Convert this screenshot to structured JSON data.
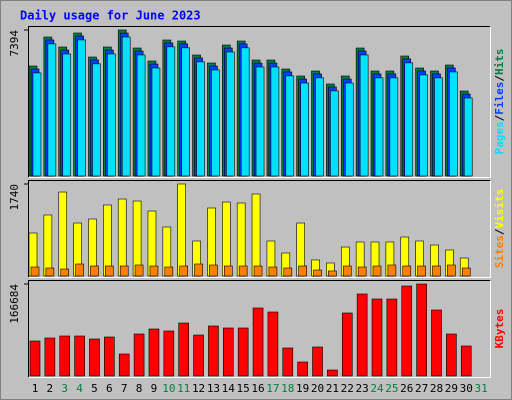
{
  "chart_data": [
    {
      "type": "bar",
      "title": "Daily usage for June 2023",
      "legend_separator": "/",
      "ylim": [
        0,
        7394
      ],
      "yticks": [
        7394
      ],
      "series": [
        {
          "name": "Hits",
          "color": "#008040",
          "values": [
            5570,
            7039,
            6533,
            7242,
            6026,
            6533,
            7394,
            6482,
            5824,
            6887,
            6836,
            6127,
            5722,
            6634,
            6836,
            5874,
            5874,
            5418,
            5064,
            5317,
            4659,
            5064,
            6482,
            5317,
            5317,
            6077,
            5469,
            5317,
            5621,
            4304,
            null
          ]
        },
        {
          "name": "Files",
          "color": "#0040ff",
          "values": [
            5420,
            6890,
            6380,
            7090,
            5880,
            6380,
            7240,
            6330,
            5670,
            6740,
            6690,
            5980,
            5570,
            6480,
            6690,
            5720,
            5720,
            5270,
            4910,
            5170,
            4510,
            4910,
            6330,
            5170,
            5170,
            5930,
            5320,
            5170,
            5470,
            4150,
            null
          ]
        },
        {
          "name": "Pages",
          "color": "#00e0ff",
          "values": [
            5220,
            6690,
            6180,
            6890,
            5680,
            6180,
            7040,
            6130,
            5470,
            6540,
            6490,
            5780,
            5370,
            6280,
            6490,
            5520,
            5520,
            5070,
            4710,
            4970,
            4310,
            4710,
            6130,
            4970,
            4970,
            5730,
            5120,
            4970,
            5270,
            3950,
            null
          ]
        }
      ]
    },
    {
      "type": "bar",
      "ylim": [
        0,
        1740
      ],
      "yticks": [
        1740
      ],
      "series": [
        {
          "name": "Visits",
          "color": "#ffff00",
          "values": [
            813,
            1154,
            1588,
            1002,
            1078,
            1343,
            1456,
            1418,
            1229,
            927,
            1740,
            662,
            1286,
            1399,
            1380,
            1551,
            662,
            435,
            1002,
            303,
            246,
            548,
            643,
            643,
            643,
            737,
            662,
            586,
            492,
            340,
            null
          ]
        },
        {
          "name": "Sites",
          "color": "#ff8000",
          "values": [
            170,
            151,
            132,
            227,
            189,
            189,
            189,
            208,
            189,
            170,
            189,
            227,
            208,
            189,
            189,
            189,
            170,
            151,
            189,
            113,
            95,
            189,
            170,
            189,
            208,
            189,
            189,
            189,
            208,
            151,
            null
          ]
        }
      ]
    },
    {
      "type": "bar",
      "ylim": [
        0,
        166684
      ],
      "yticks": [
        166684
      ],
      "categories": [
        "1",
        "2",
        "3",
        "4",
        "5",
        "6",
        "7",
        "8",
        "9",
        "10",
        "11",
        "12",
        "13",
        "14",
        "15",
        "16",
        "17",
        "18",
        "19",
        "20",
        "21",
        "22",
        "23",
        "24",
        "25",
        "26",
        "27",
        "28",
        "29",
        "30",
        "31"
      ],
      "category_colors": [
        "#000000",
        "#000000",
        "#008040",
        "#008040",
        "#000000",
        "#000000",
        "#000000",
        "#000000",
        "#000000",
        "#008040",
        "#008040",
        "#000000",
        "#000000",
        "#000000",
        "#000000",
        "#000000",
        "#008040",
        "#008040",
        "#000000",
        "#000000",
        "#000000",
        "#000000",
        "#000000",
        "#008040",
        "#008040",
        "#000000",
        "#000000",
        "#000000",
        "#000000",
        "#000000",
        "#008040"
      ],
      "series": [
        {
          "name": "KBytes",
          "color": "#ff0000",
          "values": [
            63413,
            68848,
            72472,
            72472,
            67037,
            70660,
            39860,
            76096,
            85155,
            81531,
            96025,
            74284,
            90590,
            86966,
            86966,
            123202,
            115955,
            50730,
            25365,
            52542,
            10871,
            114143,
            148568,
            139509,
            139509,
            163062,
            166684,
            119579,
            76096,
            54354,
            null
          ]
        }
      ]
    }
  ]
}
